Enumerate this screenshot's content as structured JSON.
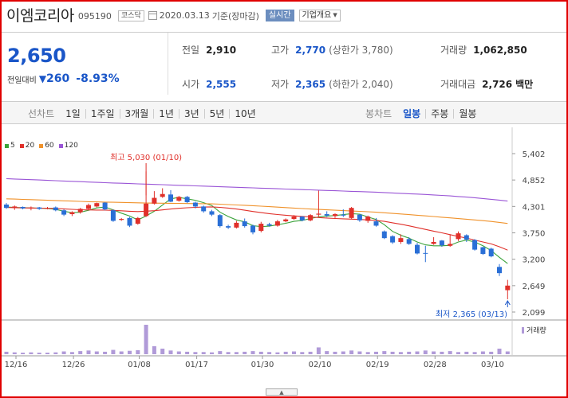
{
  "header": {
    "stock_name": "이엠코리아",
    "stock_code": "095190",
    "market": "코스닥",
    "date": "2020.03.13",
    "date_suffix": "기준(장마감)",
    "live_label": "실시간",
    "company_info_label": "기업개요"
  },
  "quote": {
    "price": "2,650",
    "change_label": "전일대비",
    "change_value": "260",
    "change_pct": "-8.93%",
    "prev_close_label": "전일",
    "prev_close": "2,910",
    "open_label": "시가",
    "open": "2,555",
    "high_label": "고가",
    "high": "2,770",
    "upper_limit": "(상한가 3,780)",
    "low_label": "저가",
    "low": "2,365",
    "lower_limit": "(하한가 2,040)",
    "volume_label": "거래량",
    "volume": "1,062,850",
    "amount_label": "거래대금",
    "amount": "2,726",
    "amount_unit": "백만"
  },
  "tabs": {
    "line_label": "선차트",
    "line_periods": [
      "1일",
      "1주일",
      "3개월",
      "1년",
      "3년",
      "5년",
      "10년"
    ],
    "candle_label": "봉차트",
    "candle_periods": [
      "일봉",
      "주봉",
      "월봉"
    ],
    "active_candle": "일봉"
  },
  "chart_data": {
    "type": "candlestick",
    "legend": [
      "5",
      "20",
      "60",
      "120"
    ],
    "legend_colors": [
      "#3aa33a",
      "#e0302a",
      "#f0922b",
      "#9a55d6"
    ],
    "up_color": "#e0302a",
    "down_color": "#2a6fd6",
    "volume_color": "#b09ad8",
    "y_ticks": [
      "5,402",
      "4,852",
      "4,301",
      "3,750",
      "3,200",
      "2,649",
      "2,099"
    ],
    "y_tick_values": [
      5402,
      4852,
      4301,
      3750,
      3200,
      2649,
      2099
    ],
    "ylim": [
      2099,
      5402
    ],
    "x_ticks": [
      "12/16",
      "12/26",
      "01/08",
      "01/17",
      "01/30",
      "02/10",
      "02/19",
      "02/28",
      "03/10"
    ],
    "x_tick_index": [
      0,
      7,
      15,
      22,
      30,
      37,
      44,
      51,
      58
    ],
    "max_annotation": "최고 5,030 (01/10)",
    "min_annotation": "최저 2,365 (03/13)",
    "volume_label": "거래량",
    "candles": [
      {
        "o": 4340,
        "h": 4370,
        "l": 4250,
        "c": 4270
      },
      {
        "o": 4270,
        "h": 4320,
        "l": 4230,
        "c": 4300
      },
      {
        "o": 4290,
        "h": 4300,
        "l": 4240,
        "c": 4260
      },
      {
        "o": 4260,
        "h": 4300,
        "l": 4220,
        "c": 4280
      },
      {
        "o": 4280,
        "h": 4290,
        "l": 4230,
        "c": 4250
      },
      {
        "o": 4260,
        "h": 4290,
        "l": 4240,
        "c": 4270
      },
      {
        "o": 4280,
        "h": 4300,
        "l": 4200,
        "c": 4220
      },
      {
        "o": 4220,
        "h": 4240,
        "l": 4100,
        "c": 4130
      },
      {
        "o": 4140,
        "h": 4200,
        "l": 4100,
        "c": 4180
      },
      {
        "o": 4180,
        "h": 4270,
        "l": 4150,
        "c": 4250
      },
      {
        "o": 4250,
        "h": 4360,
        "l": 4230,
        "c": 4330
      },
      {
        "o": 4300,
        "h": 4380,
        "l": 4280,
        "c": 4370
      },
      {
        "o": 4380,
        "h": 4390,
        "l": 4220,
        "c": 4240
      },
      {
        "o": 4220,
        "h": 4240,
        "l": 3980,
        "c": 4000
      },
      {
        "o": 4020,
        "h": 4060,
        "l": 4000,
        "c": 4040
      },
      {
        "o": 4060,
        "h": 4080,
        "l": 3870,
        "c": 3900
      },
      {
        "o": 3940,
        "h": 4080,
        "l": 3920,
        "c": 4060
      },
      {
        "o": 4100,
        "h": 5030,
        "l": 4080,
        "c": 4360
      },
      {
        "o": 4360,
        "h": 4620,
        "l": 4340,
        "c": 4480
      },
      {
        "o": 4500,
        "h": 4680,
        "l": 4480,
        "c": 4560
      },
      {
        "o": 4550,
        "h": 4640,
        "l": 4390,
        "c": 4400
      },
      {
        "o": 4420,
        "h": 4520,
        "l": 4400,
        "c": 4500
      },
      {
        "o": 4500,
        "h": 4520,
        "l": 4370,
        "c": 4390
      },
      {
        "o": 4380,
        "h": 4400,
        "l": 4260,
        "c": 4300
      },
      {
        "o": 4300,
        "h": 4320,
        "l": 4170,
        "c": 4200
      },
      {
        "o": 4200,
        "h": 4230,
        "l": 4100,
        "c": 4130
      },
      {
        "o": 4120,
        "h": 4140,
        "l": 3860,
        "c": 3890
      },
      {
        "o": 3890,
        "h": 3920,
        "l": 3830,
        "c": 3860
      },
      {
        "o": 3860,
        "h": 4000,
        "l": 3840,
        "c": 3960
      },
      {
        "o": 3990,
        "h": 4050,
        "l": 3860,
        "c": 3890
      },
      {
        "o": 3900,
        "h": 3920,
        "l": 3720,
        "c": 3760
      },
      {
        "o": 3790,
        "h": 3980,
        "l": 3760,
        "c": 3940
      },
      {
        "o": 3930,
        "h": 3960,
        "l": 3880,
        "c": 3900
      },
      {
        "o": 3900,
        "h": 4020,
        "l": 3880,
        "c": 3990
      },
      {
        "o": 3990,
        "h": 4050,
        "l": 3970,
        "c": 4030
      },
      {
        "o": 4040,
        "h": 4120,
        "l": 4020,
        "c": 4090
      },
      {
        "o": 4090,
        "h": 4100,
        "l": 3990,
        "c": 4010
      },
      {
        "o": 4010,
        "h": 4140,
        "l": 3990,
        "c": 4120
      },
      {
        "o": 4130,
        "h": 4630,
        "l": 4090,
        "c": 4150
      },
      {
        "o": 4140,
        "h": 4200,
        "l": 4080,
        "c": 4110
      },
      {
        "o": 4100,
        "h": 4160,
        "l": 4060,
        "c": 4140
      },
      {
        "o": 4130,
        "h": 4240,
        "l": 4080,
        "c": 4110
      },
      {
        "o": 4060,
        "h": 4290,
        "l": 4040,
        "c": 4270
      },
      {
        "o": 4130,
        "h": 4140,
        "l": 3980,
        "c": 4010
      },
      {
        "o": 4000,
        "h": 4110,
        "l": 3960,
        "c": 4090
      },
      {
        "o": 3990,
        "h": 4060,
        "l": 3880,
        "c": 3900
      },
      {
        "o": 3780,
        "h": 3800,
        "l": 3620,
        "c": 3640
      },
      {
        "o": 3680,
        "h": 3700,
        "l": 3520,
        "c": 3550
      },
      {
        "o": 3560,
        "h": 3720,
        "l": 3520,
        "c": 3640
      },
      {
        "o": 3620,
        "h": 3660,
        "l": 3500,
        "c": 3520
      },
      {
        "o": 3500,
        "h": 3540,
        "l": 3300,
        "c": 3320
      },
      {
        "o": 3330,
        "h": 3480,
        "l": 3140,
        "c": 3320
      },
      {
        "o": 3520,
        "h": 3660,
        "l": 3500,
        "c": 3560
      },
      {
        "o": 3590,
        "h": 3600,
        "l": 3460,
        "c": 3490
      },
      {
        "o": 3480,
        "h": 3720,
        "l": 3460,
        "c": 3520
      },
      {
        "o": 3620,
        "h": 3780,
        "l": 3580,
        "c": 3740
      },
      {
        "o": 3700,
        "h": 3720,
        "l": 3560,
        "c": 3610
      },
      {
        "o": 3600,
        "h": 3620,
        "l": 3380,
        "c": 3400
      },
      {
        "o": 3450,
        "h": 3460,
        "l": 3290,
        "c": 3310
      },
      {
        "o": 3420,
        "h": 3440,
        "l": 3240,
        "c": 3260
      },
      {
        "o": 3040,
        "h": 3100,
        "l": 2850,
        "c": 2910
      },
      {
        "o": 2555,
        "h": 2770,
        "l": 2365,
        "c": 2650
      }
    ],
    "ma5": [
      4290,
      4280,
      4275,
      4270,
      4265,
      4258,
      4240,
      4200,
      4170,
      4180,
      4220,
      4270,
      4290,
      4230,
      4160,
      4100,
      4020,
      4100,
      4200,
      4330,
      4460,
      4490,
      4460,
      4430,
      4380,
      4320,
      4180,
      4090,
      4020,
      3980,
      3900,
      3880,
      3890,
      3920,
      3950,
      3990,
      4010,
      4050,
      4080,
      4100,
      4110,
      4130,
      4150,
      4140,
      4080,
      4030,
      3920,
      3780,
      3700,
      3640,
      3560,
      3500,
      3480,
      3480,
      3490,
      3560,
      3600,
      3560,
      3480,
      3380,
      3240,
      3110
    ],
    "ma20": [
      4280,
      4275,
      4270,
      4268,
      4265,
      4262,
      4258,
      4250,
      4240,
      4232,
      4228,
      4226,
      4224,
      4218,
      4210,
      4200,
      4194,
      4202,
      4212,
      4228,
      4246,
      4262,
      4274,
      4282,
      4288,
      4292,
      4282,
      4266,
      4246,
      4222,
      4196,
      4172,
      4150,
      4132,
      4118,
      4104,
      4092,
      4082,
      4070,
      4060,
      4050,
      4042,
      4036,
      4030,
      4020,
      4010,
      3990,
      3960,
      3930,
      3896,
      3860,
      3822,
      3786,
      3750,
      3712,
      3676,
      3640,
      3600,
      3560,
      3520,
      3460,
      3390
    ],
    "ma60": [
      4460,
      4454,
      4448,
      4442,
      4436,
      4430,
      4424,
      4418,
      4412,
      4406,
      4400,
      4396,
      4392,
      4388,
      4384,
      4380,
      4376,
      4372,
      4370,
      4368,
      4366,
      4364,
      4362,
      4360,
      4358,
      4354,
      4348,
      4340,
      4332,
      4324,
      4316,
      4306,
      4296,
      4286,
      4276,
      4266,
      4256,
      4246,
      4238,
      4230,
      4222,
      4214,
      4206,
      4198,
      4190,
      4180,
      4168,
      4156,
      4144,
      4130,
      4118,
      4104,
      4090,
      4076,
      4062,
      4048,
      4034,
      4020,
      4004,
      3988,
      3968,
      3946
    ],
    "ma120": [
      4880,
      4873,
      4866,
      4859,
      4852,
      4845,
      4838,
      4831,
      4824,
      4817,
      4810,
      4803,
      4796,
      4790,
      4784,
      4778,
      4772,
      4766,
      4760,
      4754,
      4748,
      4742,
      4736,
      4730,
      4724,
      4718,
      4712,
      4706,
      4700,
      4694,
      4688,
      4682,
      4676,
      4670,
      4664,
      4658,
      4652,
      4646,
      4640,
      4634,
      4628,
      4622,
      4616,
      4610,
      4604,
      4598,
      4590,
      4582,
      4574,
      4566,
      4558,
      4550,
      4540,
      4530,
      4520,
      4508,
      4496,
      4482,
      4466,
      4450,
      4432,
      4412
    ],
    "volume": [
      8,
      6,
      5,
      6,
      5,
      5,
      6,
      9,
      7,
      10,
      12,
      9,
      8,
      14,
      9,
      11,
      13,
      95,
      26,
      18,
      12,
      9,
      8,
      7,
      7,
      6,
      10,
      7,
      7,
      8,
      10,
      8,
      7,
      6,
      8,
      9,
      7,
      8,
      22,
      10,
      8,
      9,
      12,
      9,
      7,
      8,
      10,
      8,
      7,
      8,
      9,
      12,
      9,
      8,
      10,
      7,
      8,
      7,
      9,
      8,
      18,
      9
    ]
  }
}
